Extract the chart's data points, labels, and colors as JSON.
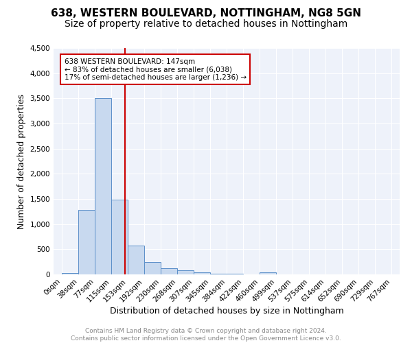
{
  "title": "638, WESTERN BOULEVARD, NOTTINGHAM, NG8 5GN",
  "subtitle": "Size of property relative to detached houses in Nottingham",
  "xlabel": "Distribution of detached houses by size in Nottingham",
  "ylabel": "Number of detached properties",
  "footer_line1": "Contains HM Land Registry data © Crown copyright and database right 2024.",
  "footer_line2": "Contains public sector information licensed under the Open Government Licence v3.0.",
  "bin_labels": [
    "0sqm",
    "38sqm",
    "77sqm",
    "115sqm",
    "153sqm",
    "192sqm",
    "230sqm",
    "268sqm",
    "307sqm",
    "345sqm",
    "384sqm",
    "422sqm",
    "460sqm",
    "499sqm",
    "537sqm",
    "575sqm",
    "614sqm",
    "652sqm",
    "690sqm",
    "729sqm",
    "767sqm"
  ],
  "bar_values": [
    30,
    1280,
    3500,
    1480,
    575,
    245,
    125,
    80,
    40,
    20,
    10,
    5,
    45,
    5,
    0,
    0,
    0,
    0,
    0,
    0
  ],
  "bar_color": "#c8d9ef",
  "bar_edge_color": "#5b8fc9",
  "vline_color": "#cc0000",
  "annotation_line1": "638 WESTERN BOULEVARD: 147sqm",
  "annotation_line2": "← 83% of detached houses are smaller (6,038)",
  "annotation_line3": "17% of semi-detached houses are larger (1,236) →",
  "annotation_box_edgecolor": "#cc0000",
  "ylim": [
    0,
    4500
  ],
  "yticks": [
    0,
    500,
    1000,
    1500,
    2000,
    2500,
    3000,
    3500,
    4000,
    4500
  ],
  "background_color": "#eef2fa",
  "grid_color": "#ffffff",
  "title_fontsize": 11,
  "subtitle_fontsize": 10,
  "axis_label_fontsize": 9,
  "tick_fontsize": 7.5,
  "footer_fontsize": 6.5
}
